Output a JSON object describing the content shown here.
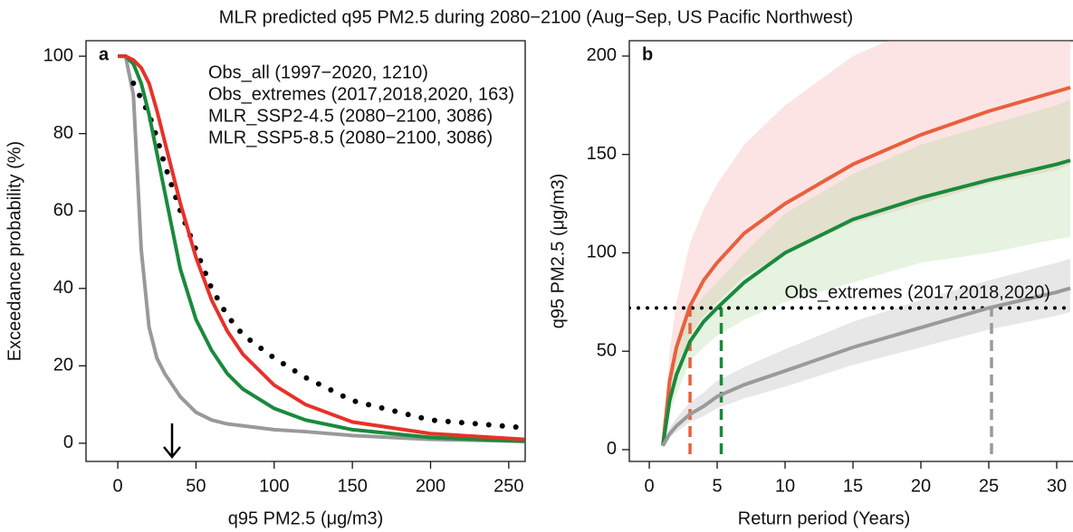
{
  "title": "MLR predicted q95 PM2.5 during 2080−2100 (Aug−Sep, US Pacific Northwest)",
  "chart_data": [
    {
      "type": "line",
      "annotation": "a",
      "xlabel": "q95 PM2.5 (μg/m3)",
      "ylabel": "Exceedance probability (%)",
      "xlim": [
        -20.3,
        260.5
      ],
      "ylim": [
        -4.7,
        104
      ],
      "xticks": [
        0,
        50,
        100,
        150,
        200,
        250
      ],
      "yticks": [
        0,
        20,
        40,
        60,
        80,
        100
      ],
      "legend": "top-center",
      "x": [
        0,
        5,
        10,
        15,
        20,
        25,
        30,
        40,
        50,
        60,
        70,
        80,
        100,
        120,
        150,
        200,
        260
      ],
      "series": [
        {
          "name": "Obs_all (1997−2020, 1210)",
          "color": "#999999",
          "values": [
            100,
            100,
            90,
            50,
            30,
            22,
            18,
            12,
            8,
            6,
            5,
            4.5,
            3.5,
            3,
            2,
            1,
            0.5
          ]
        },
        {
          "name": "Obs_extremes (2017,2018,2020, 163)",
          "color": "#000000",
          "linestyle": "dotted",
          "values": [
            null,
            null,
            93,
            89,
            85,
            79,
            72,
            60,
            50,
            40,
            33,
            28,
            22,
            17,
            11,
            6,
            4
          ]
        },
        {
          "name": "MLR_SSP2-4.5 (2080−2100, 3086)",
          "color": "#1a8a3c",
          "values": [
            100,
            100,
            98,
            93,
            85,
            75,
            65,
            45,
            32,
            24,
            18,
            14,
            9,
            6,
            3.5,
            1.5,
            0.5
          ]
        },
        {
          "name": "MLR_SSP5-8.5 (2080−2100, 3086)",
          "color": "#e8312a",
          "values": [
            100,
            100,
            99,
            97,
            93,
            86,
            78,
            62,
            48,
            37,
            29,
            23,
            15,
            10,
            5.5,
            2.5,
            1
          ]
        }
      ]
    },
    {
      "type": "line",
      "annotation": "b",
      "xlabel": "Return period (Years)",
      "ylabel": "q95 PM2.5 (μg/m3)",
      "xlim": [
        -1.47,
        31.2
      ],
      "ylim": [
        -6,
        207.8
      ],
      "xticks": [
        0,
        5,
        10,
        15,
        20,
        25,
        30
      ],
      "yticks": [
        0,
        50,
        100,
        150,
        200
      ],
      "threshold": 72,
      "threshold_label": "Obs_extremes (2017,2018,2020)",
      "x": [
        1,
        1.5,
        2,
        3,
        4,
        5,
        7,
        10,
        15,
        20,
        25,
        30,
        31
      ],
      "series": [
        {
          "color": "#e8603c",
          "band_color": "#f4a6a6",
          "crossing": 3,
          "values": [
            2,
            35,
            52,
            73,
            86,
            95,
            110,
            125,
            145,
            160,
            172,
            182,
            184
          ],
          "upper": [
            3,
            50,
            75,
            105,
            122,
            135,
            155,
            175,
            200,
            215,
            230,
            240,
            242
          ],
          "lower": [
            1,
            28,
            42,
            58,
            68,
            75,
            88,
            100,
            115,
            125,
            135,
            142,
            145
          ]
        },
        {
          "color": "#1a8a3c",
          "band_color": "#a8d898",
          "crossing": 5.3,
          "values": [
            2,
            25,
            38,
            55,
            65,
            72,
            85,
            100,
            117,
            128,
            137,
            145,
            147
          ],
          "upper": [
            3,
            35,
            50,
            70,
            78,
            85,
            100,
            120,
            140,
            155,
            165,
            175,
            178
          ],
          "lower": [
            1,
            18,
            28,
            45,
            52,
            58,
            66,
            75,
            85,
            95,
            100,
            107,
            108
          ]
        },
        {
          "color": "#9a9a9a",
          "band_color": "#b0b0b0",
          "crossing": 25.2,
          "values": [
            2,
            8,
            12,
            18,
            22,
            27,
            33,
            40,
            52,
            62,
            72,
            80,
            82
          ],
          "upper": [
            3,
            11,
            16,
            24,
            29,
            35,
            42,
            51,
            65,
            76,
            86,
            95,
            97
          ],
          "lower": [
            1,
            6,
            9,
            14,
            17,
            21,
            26,
            32,
            43,
            52,
            61,
            68,
            70
          ]
        }
      ]
    }
  ]
}
